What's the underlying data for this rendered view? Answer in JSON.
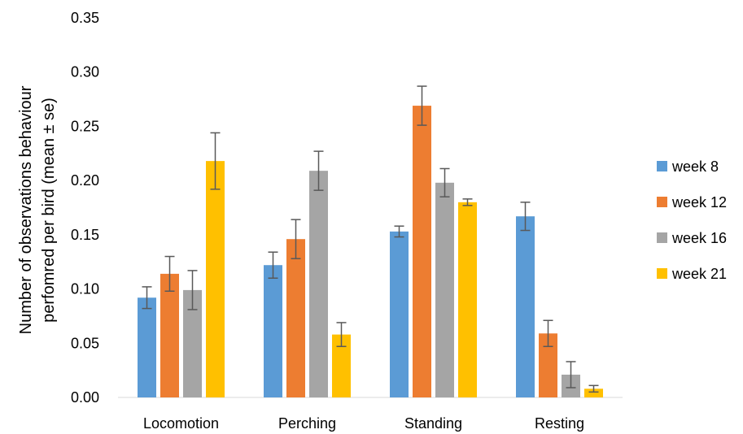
{
  "chart_data": {
    "type": "bar",
    "ylabel_lines": [
      "Number of observations behaviour",
      "perfomred per bird (mean ± se)"
    ],
    "ylim": [
      0,
      0.35
    ],
    "yticks": [
      "0.00",
      "0.05",
      "0.10",
      "0.15",
      "0.20",
      "0.25",
      "0.30",
      "0.35"
    ],
    "grid": false,
    "legend_position": "right",
    "categories": [
      "Locomotion",
      "Perching",
      "Standing",
      "Resting"
    ],
    "series": [
      {
        "name": "week 8",
        "color": "#5B9BD5",
        "values": [
          0.092,
          0.122,
          0.153,
          0.167
        ],
        "errors": [
          0.01,
          0.012,
          0.005,
          0.013
        ]
      },
      {
        "name": "week 12",
        "color": "#ED7D31",
        "values": [
          0.114,
          0.146,
          0.269,
          0.059
        ],
        "errors": [
          0.016,
          0.018,
          0.018,
          0.012
        ]
      },
      {
        "name": "week 16",
        "color": "#A5A5A5",
        "values": [
          0.099,
          0.209,
          0.198,
          0.021
        ],
        "errors": [
          0.018,
          0.018,
          0.013,
          0.012
        ]
      },
      {
        "name": "week 21",
        "color": "#FFC000",
        "values": [
          0.218,
          0.058,
          0.18,
          0.008
        ],
        "errors": [
          0.026,
          0.011,
          0.003,
          0.003
        ]
      }
    ]
  }
}
